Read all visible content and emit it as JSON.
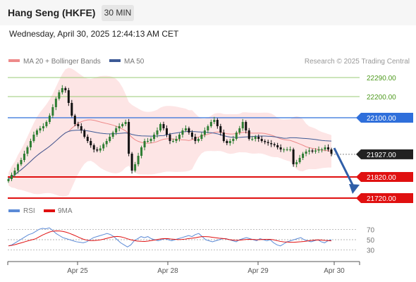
{
  "header": {
    "title": "Hang Seng (HKFE)",
    "timeframe": "30 MIN",
    "datetime": "Wednesday, April 30, 2025 12:44:13 AM CET"
  },
  "legend": {
    "ma20": "MA 20 + Bollinger Bands",
    "ma50": "MA 50",
    "rsi": "RSI",
    "rsi_ma": "9MA",
    "credit": "Research © 2025 Trading Central"
  },
  "colors": {
    "support": "#e01010",
    "pivot": "#2f6fdb",
    "resistance": "#9acb74",
    "resistance_text": "#4e9a1e",
    "bullish": "#2e7d32",
    "bearish": "#111111",
    "bollinger": "#fde0e0",
    "ma20": "#ee8a8a",
    "ma50": "#3d5a96",
    "rsi": "#5b8ad6",
    "rsi_ma": "#e01010",
    "arrow": "#2f5ea8"
  },
  "chart_data": {
    "type": "candlestick",
    "x_ticks": [
      "Apr 25",
      "Apr 28",
      "Apr 29",
      "Apr 30"
    ],
    "levels": [
      {
        "label": "22290.00",
        "value": 22290,
        "kind": "resistance"
      },
      {
        "label": "22200.00",
        "value": 22200,
        "kind": "resistance"
      },
      {
        "label": "22100.00",
        "value": 22100,
        "kind": "pivot"
      },
      {
        "label": "21927.00",
        "value": 21927,
        "kind": "last_price"
      },
      {
        "label": "21820.00",
        "value": 21820,
        "kind": "support"
      },
      {
        "label": "21720.00",
        "value": 21720,
        "kind": "support"
      }
    ],
    "y_range": [
      21710,
      22310
    ],
    "closes": [
      21810,
      21830,
      21850,
      21880,
      21900,
      21930,
      21960,
      21990,
      22020,
      22040,
      22050,
      22060,
      22080,
      22110,
      22150,
      22190,
      22220,
      22240,
      22230,
      22170,
      22110,
      22070,
      22060,
      22040,
      22010,
      21990,
      21970,
      21950,
      21945,
      21955,
      21975,
      21990,
      22010,
      22030,
      22050,
      22060,
      22070,
      22080,
      21930,
      21850,
      21880,
      21920,
      21960,
      21990,
      21990,
      22000,
      22020,
      22040,
      22070,
      22050,
      22020,
      21990,
      21990,
      22000,
      22020,
      22040,
      22050,
      22030,
      22010,
      21990,
      22000,
      22020,
      22040,
      22060,
      22080,
      22090,
      22060,
      22030,
      21990,
      21980,
      21990,
      22000,
      22030,
      22050,
      22080,
      22040,
      22000,
      22000,
      22010,
      22000,
      21990,
      21985,
      21980,
      21975,
      21970,
      21960,
      21950,
      21950,
      21950,
      21950,
      21880,
      21890,
      21910,
      21930,
      21940,
      21945,
      21940,
      21945,
      21950,
      21950,
      21960,
      21950,
      21930
    ],
    "rsi": {
      "axis_ticks": [
        70,
        50,
        30
      ],
      "range": [
        20,
        80
      ],
      "values": [
        38,
        40,
        44,
        48,
        52,
        56,
        60,
        62,
        66,
        70,
        72,
        71,
        73,
        68,
        62,
        58,
        54,
        52,
        50,
        48,
        46,
        45,
        44,
        46,
        50,
        54,
        56,
        58,
        60,
        62,
        60,
        56,
        50,
        44,
        40,
        36,
        40,
        48,
        52,
        56,
        54,
        56,
        52,
        50,
        48,
        50,
        52,
        50,
        48,
        50,
        52,
        54,
        56,
        58,
        56,
        60,
        62,
        56,
        50,
        48,
        46,
        48,
        50,
        52,
        52,
        50,
        48,
        46,
        50,
        52,
        54,
        52,
        50,
        48,
        52,
        50,
        48,
        50,
        44,
        40,
        38,
        42,
        46,
        48,
        50,
        52,
        54,
        50,
        48,
        46,
        48,
        50,
        46,
        44,
        48,
        50
      ]
    }
  }
}
